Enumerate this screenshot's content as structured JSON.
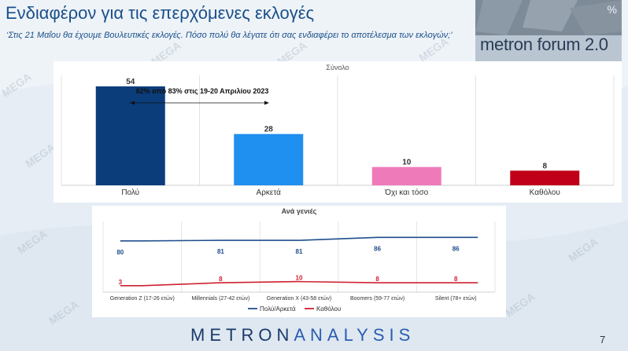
{
  "title": "Ενδιαφέρον για τις επερχόμενες εκλογές",
  "subtitle": "‘Στις 21 Μαΐου θα έχουμε Βουλευτικές εκλογές. Πόσο πολύ θα λέγατε ότι σας ενδιαφέρει το αποτέλεσμα των εκλογών;’",
  "logo": {
    "text": "metron forum 2.0",
    "pct": "%"
  },
  "watermark": "MEGA",
  "footer": {
    "brand_left": "METRON",
    "brand_right": "ANALYSIS",
    "page": "7"
  },
  "colors": {
    "primary": "#1a4f8a",
    "bar_poly": "#0b3d7a",
    "bar_arketa": "#1f8ff0",
    "bar_oxi": "#ef7ab9",
    "bar_katholou": "#c00018",
    "line_blue": "#1f4e8c",
    "line_red": "#d02030"
  },
  "chart_data": [
    {
      "type": "bar",
      "title": "Σύνολο",
      "categories": [
        "Πολύ",
        "Αρκετά",
        "Όχι και τόσο",
        "Καθόλου"
      ],
      "values": [
        54,
        28,
        10,
        8
      ],
      "ylim": [
        0,
        60
      ],
      "annotation": "82% από 83% στις 19-20 Απριλίου 2023",
      "grid": true
    },
    {
      "type": "line",
      "title": "Ανά γενιές",
      "categories": [
        "Generation Z (17-26 ετών)",
        "Millennials (27-42 ετών)",
        "Generation X (43-58 ετών)",
        "Boomers (59-77 ετών)",
        "Silent (78+ ετών)"
      ],
      "series": [
        {
          "name": "Πολύ/Αρκετά",
          "values": [
            80,
            81,
            81,
            86,
            86
          ],
          "color": "#1f4e8c"
        },
        {
          "name": "Καθόλου",
          "values": [
            3,
            8,
            10,
            8,
            8
          ],
          "color": "#d02030"
        }
      ],
      "ylim": [
        0,
        100
      ],
      "legend": "bottom",
      "grid": true
    }
  ]
}
